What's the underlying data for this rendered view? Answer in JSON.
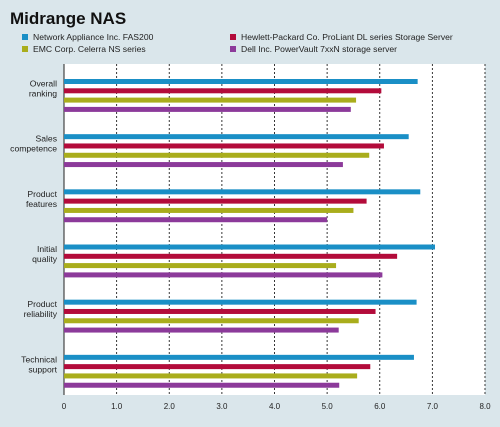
{
  "chart_data": {
    "type": "bar",
    "orientation": "horizontal",
    "title": "Midrange NAS",
    "categories": [
      "Overall\nranking",
      "Sales\ncompetence",
      "Product\nfeatures",
      "Initial\nquality",
      "Product\nreliability",
      "Technical\nsupport"
    ],
    "series": [
      {
        "name": "Network Appliance Inc. FAS200",
        "color": "#1a8fc6",
        "values": [
          6.72,
          6.55,
          6.77,
          7.05,
          6.7,
          6.65
        ]
      },
      {
        "name": "Hewlett-Packard Co. ProLiant DL series Storage Server",
        "color": "#b30b3a",
        "values": [
          6.03,
          6.08,
          5.75,
          6.33,
          5.92,
          5.82
        ]
      },
      {
        "name": "EMC Corp. Celerra NS series",
        "color": "#a9ad1c",
        "values": [
          5.55,
          5.8,
          5.5,
          5.17,
          5.6,
          5.57
        ]
      },
      {
        "name": "Dell Inc. PowerVault 7xxN storage server",
        "color": "#8c3a9a",
        "values": [
          5.45,
          5.3,
          5.0,
          6.05,
          5.22,
          5.23
        ]
      }
    ],
    "xlim": [
      0,
      8
    ],
    "xticks": [
      "0",
      "1.0",
      "2.0",
      "3.0",
      "4.0",
      "5.0",
      "6.0",
      "7.0",
      "8.0"
    ],
    "grid": "vertical dashed",
    "legend": "top, two columns"
  }
}
